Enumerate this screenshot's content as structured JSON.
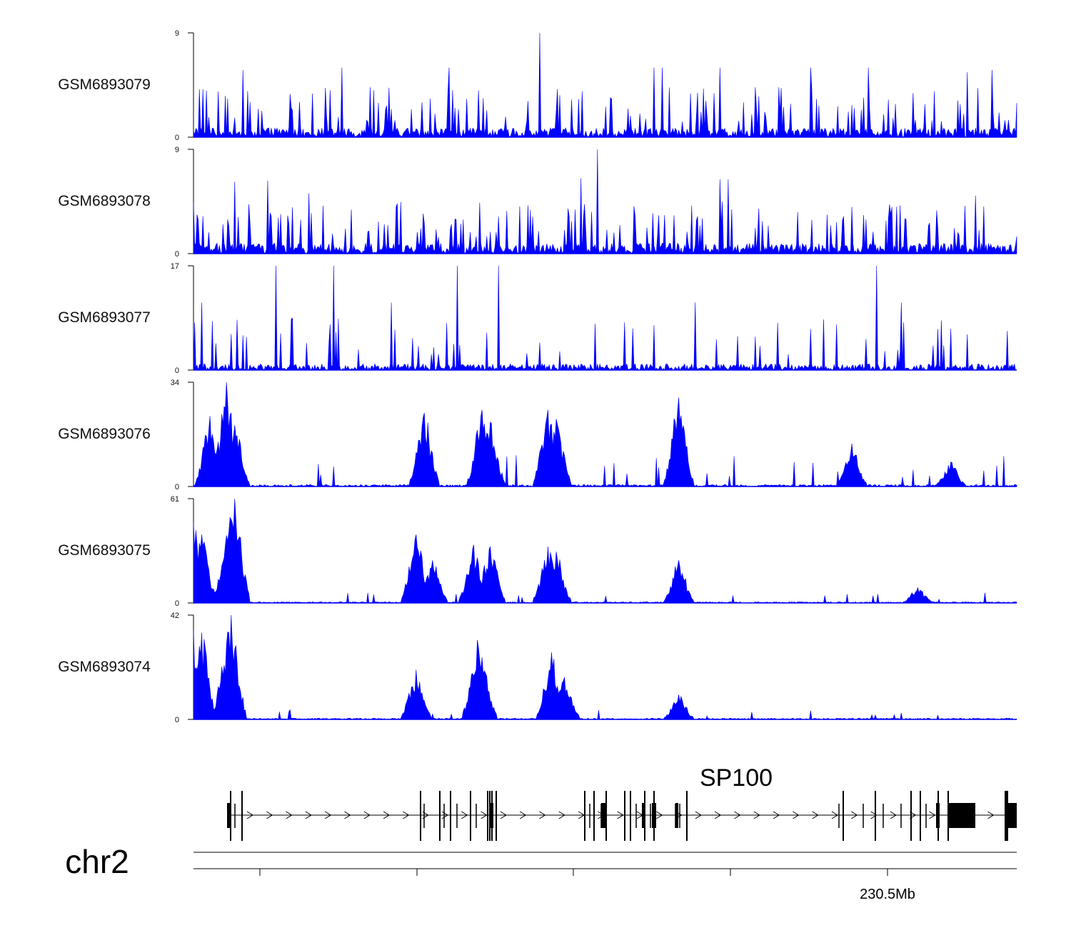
{
  "chart_data": {
    "type": "area",
    "title": "",
    "chromosome": "chr2",
    "gene": "SP100",
    "genomic_axis": {
      "label": "230.5Mb",
      "minor_ticks": 5
    },
    "fill_color": "#0000ff",
    "gene_color": "#000000",
    "series": [
      {
        "name": "GSM6893079",
        "ylim": [
          0,
          9
        ],
        "ymax_label": "9",
        "ymin_label": "0",
        "peaks": [
          [
            0.42,
            9
          ],
          [
            0.56,
            6
          ],
          [
            0.57,
            6
          ],
          [
            0.06,
            5.8
          ],
          [
            0.18,
            6
          ],
          [
            0.31,
            6
          ],
          [
            0.64,
            6
          ],
          [
            0.75,
            6
          ],
          [
            0.82,
            6
          ],
          [
            0.94,
            5.6
          ],
          [
            0.97,
            5.8
          ]
        ]
      },
      {
        "name": "GSM6893078",
        "ylim": [
          0,
          9
        ],
        "ymax_label": "9",
        "ymin_label": "0",
        "peaks": [
          [
            0.49,
            9
          ],
          [
            0.05,
            6.2
          ],
          [
            0.09,
            6.3
          ],
          [
            0.47,
            6.5
          ],
          [
            0.64,
            6.4
          ],
          [
            0.65,
            6.4
          ],
          [
            0.95,
            5
          ],
          [
            0.14,
            5.2
          ]
        ]
      },
      {
        "name": "GSM6893077",
        "ylim": [
          0,
          17
        ],
        "ymax_label": "17",
        "ymin_label": "0",
        "peaks": [
          [
            0.1,
            17
          ],
          [
            0.17,
            17
          ],
          [
            0.32,
            17
          ],
          [
            0.37,
            17
          ],
          [
            0.83,
            17
          ],
          [
            0.24,
            11
          ],
          [
            0.01,
            11
          ],
          [
            0.61,
            11
          ],
          [
            0.86,
            11
          ]
        ]
      },
      {
        "name": "GSM6893076",
        "ylim": [
          0,
          34
        ],
        "ymax_label": "34",
        "ymin_label": "0",
        "peaks": [
          [
            0.04,
            34
          ],
          [
            0.05,
            20
          ],
          [
            0.02,
            23
          ],
          [
            0.28,
            24
          ],
          [
            0.35,
            25
          ],
          [
            0.36,
            21
          ],
          [
            0.43,
            25
          ],
          [
            0.44,
            22
          ],
          [
            0.59,
            29
          ],
          [
            0.8,
            14
          ],
          [
            0.92,
            8
          ]
        ]
      },
      {
        "name": "GSM6893075",
        "ylim": [
          0,
          61
        ],
        "ymax_label": "61",
        "ymin_label": "0",
        "peaks": [
          [
            0.05,
            61
          ],
          [
            0.045,
            50
          ],
          [
            0.04,
            30
          ],
          [
            0.0,
            47
          ],
          [
            0.01,
            40
          ],
          [
            0.27,
            40
          ],
          [
            0.29,
            25
          ],
          [
            0.34,
            34
          ],
          [
            0.36,
            33
          ],
          [
            0.43,
            33
          ],
          [
            0.44,
            30
          ],
          [
            0.59,
            25
          ],
          [
            0.88,
            9
          ]
        ]
      },
      {
        "name": "GSM6893074",
        "ylim": [
          0,
          42
        ],
        "ymax_label": "42",
        "ymin_label": "0",
        "peaks": [
          [
            0.046,
            42
          ],
          [
            0.04,
            30
          ],
          [
            0.0,
            36
          ],
          [
            0.01,
            35
          ],
          [
            0.27,
            20
          ],
          [
            0.345,
            32
          ],
          [
            0.35,
            25
          ],
          [
            0.435,
            27
          ],
          [
            0.45,
            17
          ],
          [
            0.59,
            10
          ]
        ]
      }
    ]
  }
}
